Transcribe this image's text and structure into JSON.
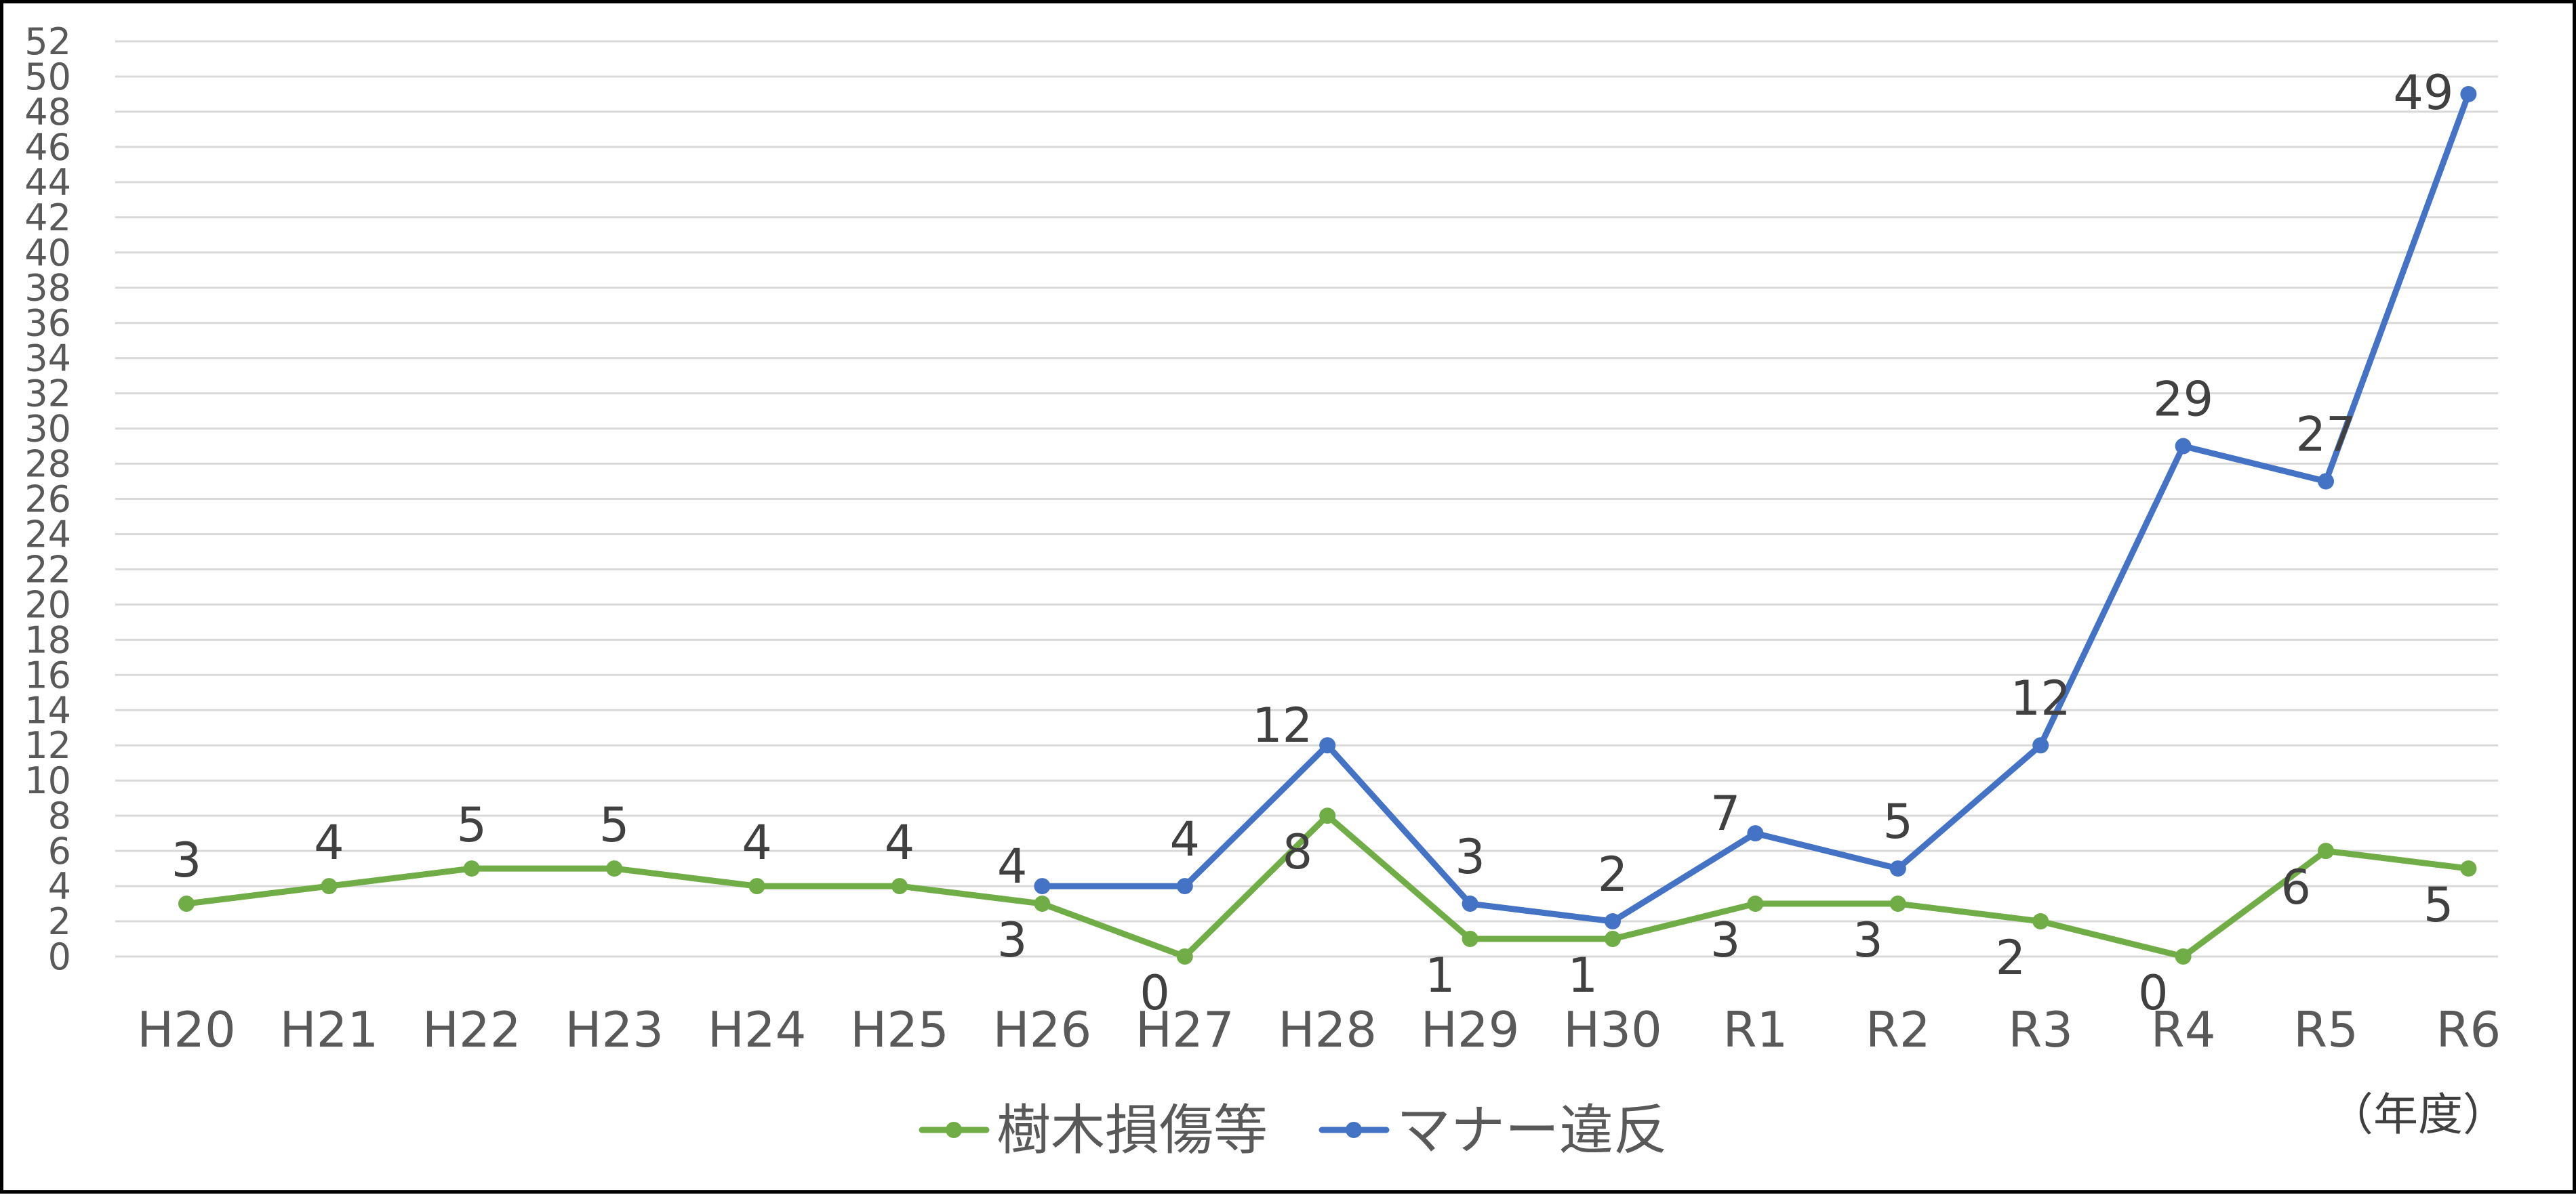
{
  "chart_data": {
    "type": "line",
    "categories": [
      "H20",
      "H21",
      "H22",
      "H23",
      "H24",
      "H25",
      "H26",
      "H27",
      "H28",
      "H29",
      "H30",
      "R1",
      "R2",
      "R3",
      "R4",
      "R5",
      "R6"
    ],
    "series": [
      {
        "name": "樹木損傷等",
        "color": "#70AD47",
        "values": [
          3,
          4,
          5,
          5,
          4,
          4,
          3,
          0,
          8,
          1,
          1,
          3,
          3,
          2,
          0,
          6,
          5
        ]
      },
      {
        "name": "マナー違反",
        "color": "#4472C4",
        "values": [
          null,
          null,
          null,
          null,
          null,
          null,
          4,
          4,
          12,
          3,
          2,
          7,
          5,
          12,
          29,
          27,
          49
        ]
      }
    ],
    "ylim": [
      0,
      52
    ],
    "ytick_step": 2,
    "grid": true,
    "legend_position": "bottom",
    "unit_label": "（年度）"
  }
}
